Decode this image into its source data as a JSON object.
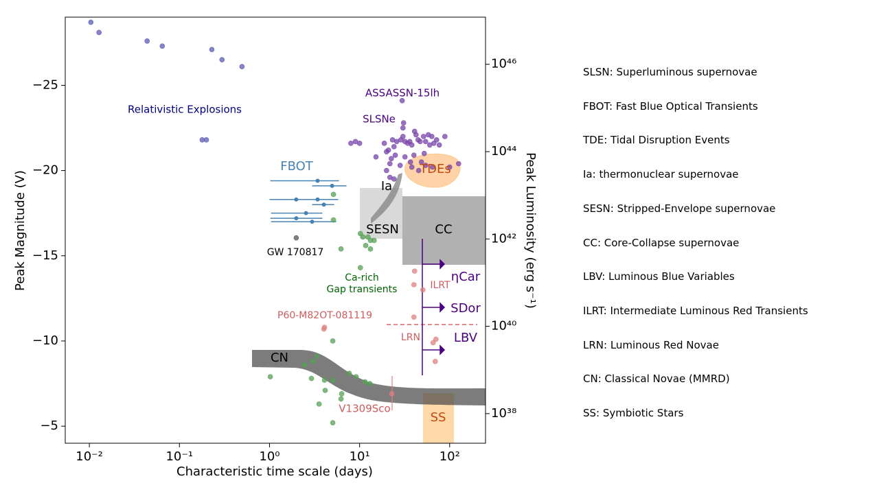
{
  "chart_data": {
    "type": "scatter",
    "xlog": true,
    "y2log": true,
    "xlabel": "Characteristic time scale (days)",
    "ylabel": "Peak Magnitude (V)",
    "y2label": "Peak Luminosity (erg s⁻¹)",
    "xlim": [
      0.0054,
      250
    ],
    "ylim": [
      -4,
      -29
    ],
    "y2lim": [
      2.1e+37,
      1.2e+47
    ],
    "xticks": [
      {
        "value": 0.01,
        "label": "10⁻²"
      },
      {
        "value": 0.1,
        "label": "10⁻¹"
      },
      {
        "value": 1,
        "label": "10⁰"
      },
      {
        "value": 10,
        "label": "10¹"
      },
      {
        "value": 100,
        "label": "10²"
      }
    ],
    "yticks": [
      {
        "value": -25,
        "label": "−25"
      },
      {
        "value": -20,
        "label": "−20"
      },
      {
        "value": -15,
        "label": "−15"
      },
      {
        "value": -10,
        "label": "−10"
      },
      {
        "value": -5,
        "label": "−5"
      }
    ],
    "y2ticks": [
      {
        "value": 1e+46,
        "label": "10⁴⁶"
      },
      {
        "value": 1e+44,
        "label": "10⁴⁴"
      },
      {
        "value": 1e+42,
        "label": "10⁴²"
      },
      {
        "value": 1e+40,
        "label": "10⁴⁰"
      },
      {
        "value": 1e+38,
        "label": "10³⁸"
      }
    ],
    "series": [
      {
        "color": "#5b5bb5",
        "x": [
          0.0104,
          0.0128,
          0.0438,
          0.0645,
          0.229,
          0.297,
          0.495,
          0.179,
          0.199
        ],
        "y": [
          -28.7,
          -28.1,
          -27.6,
          -27.3,
          -27.1,
          -26.5,
          -26.1,
          -21.8,
          -21.8
        ]
      },
      {
        "color": "#7744aa",
        "x": [
          29.7,
          30.8,
          30.3,
          8.0,
          9.0,
          10.0,
          18.8,
          20.9,
          23.2,
          24.1,
          25.8,
          28.7,
          30.3,
          31.9,
          34.2,
          36.1,
          38.0,
          40.8,
          42.3,
          44.6,
          47.0,
          51.3,
          54.1,
          58.0,
          60.1,
          63.4,
          66.7,
          71.6,
          76.7,
          88.5,
          19.9,
          22.5,
          24.9,
          31.9,
          36.7,
          40.1,
          48.6,
          54.1,
          15.2,
          21.7,
          28.2,
          38.0,
          19.9,
          21.7,
          24.1,
          45.3,
          64.4,
          125.6,
          100,
          52.2
        ],
        "y": [
          -24.1,
          -22.8,
          -22.5,
          -21.6,
          -21.7,
          -21.6,
          -21.6,
          -21.2,
          -21.8,
          -21.4,
          -21.7,
          -21.8,
          -22.0,
          -21.7,
          -21.6,
          -21.7,
          -21.5,
          -22.3,
          -22.1,
          -21.8,
          -21.7,
          -22.0,
          -21.7,
          -22.1,
          -21.5,
          -22.0,
          -21.6,
          -21.8,
          -21.5,
          -22.0,
          -21.1,
          -20.7,
          -20.9,
          -20.8,
          -20.5,
          -20.9,
          -20.5,
          -20.3,
          -20.8,
          -20.4,
          -20.3,
          -20.2,
          -20.0,
          -19.6,
          -19.5,
          -20.0,
          -20.2,
          -20.4,
          -20.2,
          -21.0
        ]
      },
      {
        "color": "#4682b4",
        "x": [
          3.42,
          4.95,
          1.98,
          3.42,
          4.01,
          2.54,
          1.98,
          2.97
        ],
        "y": [
          -19.4,
          -19.1,
          -18.3,
          -18.3,
          -18.0,
          -17.5,
          -17.2,
          -17.0
        ],
        "x_low": [
          1.02,
          2.97,
          1.0,
          2.97,
          2.97,
          1.04,
          1.02,
          1.04
        ],
        "x_high": [
          5.9,
          7.16,
          3.94,
          5.8,
          5.22,
          3.87,
          3.87,
          5.5
        ]
      },
      {
        "color": "#555555",
        "x": [
          1.98
        ],
        "y": [
          -16.05
        ]
      },
      {
        "color": "#55a055",
        "x": [
          5.13,
          5.13,
          6.22,
          10.2,
          10.9,
          12.4,
          13.2,
          14.5,
          11.7,
          13.2,
          10.2,
          5.04,
          3.36,
          3.03,
          2.45,
          1.02,
          2.92,
          4.08,
          5.04,
          7.68,
          9.16,
          11.5,
          13.0,
          4.15,
          6.33,
          6.22,
          3.55,
          5.04
        ],
        "y": [
          -18.6,
          -17.1,
          -15.4,
          -16.3,
          -16.1,
          -16.1,
          -15.9,
          -15.9,
          -15.6,
          -15.4,
          -14.3,
          -10.0,
          -9.1,
          -8.8,
          -8.6,
          -7.9,
          -7.8,
          -7.7,
          -7.7,
          -8.1,
          -7.9,
          -7.6,
          -7.5,
          -7.1,
          -6.9,
          -6.6,
          -6.3,
          -5.2
        ]
      },
      {
        "color": "#e08080",
        "x": [
          40.8,
          40.1,
          50.4,
          40.1,
          70.4,
          65.5,
          69.2,
          4.08,
          4.01,
          22.8
        ],
        "y": [
          -14.1,
          -13.3,
          -13.0,
          -11.4,
          -10.1,
          -9.9,
          -8.8,
          -10.8,
          -10.7,
          -6.9
        ]
      }
    ],
    "annotations": [
      {
        "text": "Relativistic Explosions",
        "color": "#000080"
      },
      {
        "text": "ASSASSN-15lh",
        "color": "#4b0082"
      },
      {
        "text": "SLSNe",
        "color": "#4b0082"
      },
      {
        "text": "FBOT",
        "color": "#4682b4"
      },
      {
        "text": "Ia",
        "color": "#000000"
      },
      {
        "text": "TDEs",
        "color": "#c04a10"
      },
      {
        "text": "SESN",
        "color": "#000000"
      },
      {
        "text": "CC",
        "color": "#000000"
      },
      {
        "text": "GW 170817",
        "color": "#000000"
      },
      {
        "text": "Ca-rich",
        "color": "#006400"
      },
      {
        "text": "Gap transients",
        "color": "#006400"
      },
      {
        "text": "ILRT",
        "color": "#cd5c5c"
      },
      {
        "text": "ηCar",
        "color": "#4b0082"
      },
      {
        "text": "SDor",
        "color": "#4b0082"
      },
      {
        "text": "LBV",
        "color": "#4b0082"
      },
      {
        "text": "P60-M82OT-081119",
        "color": "#cd5c5c"
      },
      {
        "text": "LRN",
        "color": "#cd5c5c"
      },
      {
        "text": "CN",
        "color": "#000000"
      },
      {
        "text": "V1309Sco",
        "color": "#cd5c5c"
      },
      {
        "text": "SS",
        "color": "#c04a10"
      }
    ]
  },
  "notes": [
    "SLSN: Superluminous supernovae",
    "FBOT: Fast Blue Optical Transients",
    "TDE: Tidal Disruption Events",
    "Ia: thermonuclear supernovae",
    "SESN: Stripped-Envelope supernovae",
    "CC: Core-Collapse supernovae",
    "LBV: Luminous Blue Variables",
    "ILRT: Intermediate Luminous Red Transients",
    "LRN: Luminous Red Novae",
    "CN: Classical Novae (MMRD)",
    "SS: Symbiotic Stars"
  ]
}
